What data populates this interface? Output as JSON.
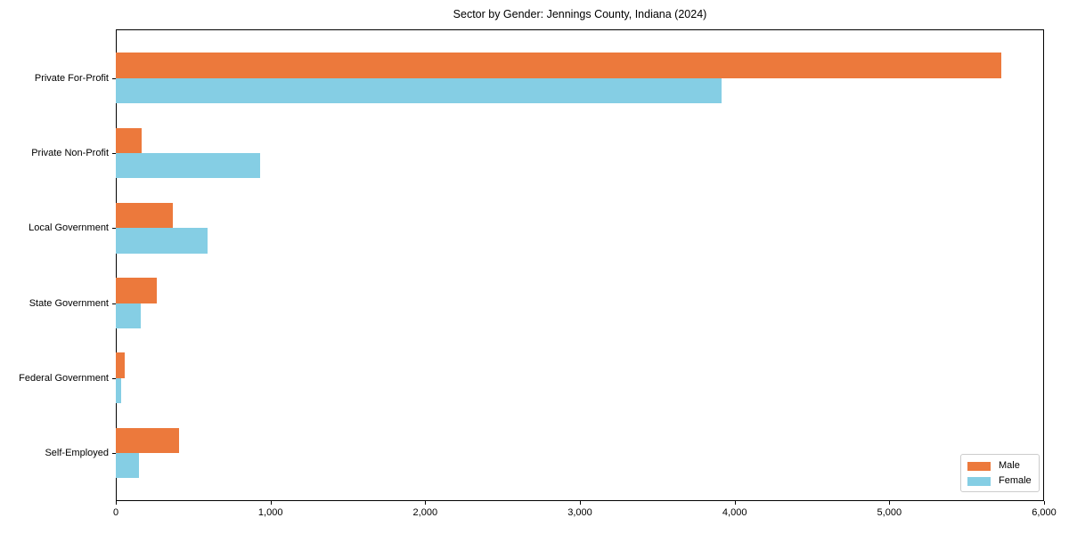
{
  "chart_data": {
    "type": "bar",
    "orientation": "horizontal",
    "title": "Sector by Gender: Jennings County, Indiana (2024)",
    "categories": [
      "Private For-Profit",
      "Private Non-Profit",
      "Local Government",
      "State Government",
      "Federal Government",
      "Self-Employed"
    ],
    "series": [
      {
        "name": "Male",
        "color": "#EC793C",
        "values": [
          5725,
          165,
          370,
          265,
          60,
          410
        ]
      },
      {
        "name": "Female",
        "color": "#85CEE4",
        "values": [
          3915,
          935,
          590,
          160,
          35,
          150
        ]
      }
    ],
    "xlabel": "",
    "ylabel": "",
    "xlim": [
      0,
      6000
    ],
    "x_tick_values": [
      0,
      1000,
      2000,
      3000,
      4000,
      5000,
      6000
    ],
    "x_tick_labels": [
      "0",
      "1,000",
      "2,000",
      "3,000",
      "4,000",
      "5,000",
      "6,000"
    ],
    "grid": false,
    "legend_position": "lower right",
    "spine_color": "#000000",
    "background_color": "#ffffff"
  }
}
